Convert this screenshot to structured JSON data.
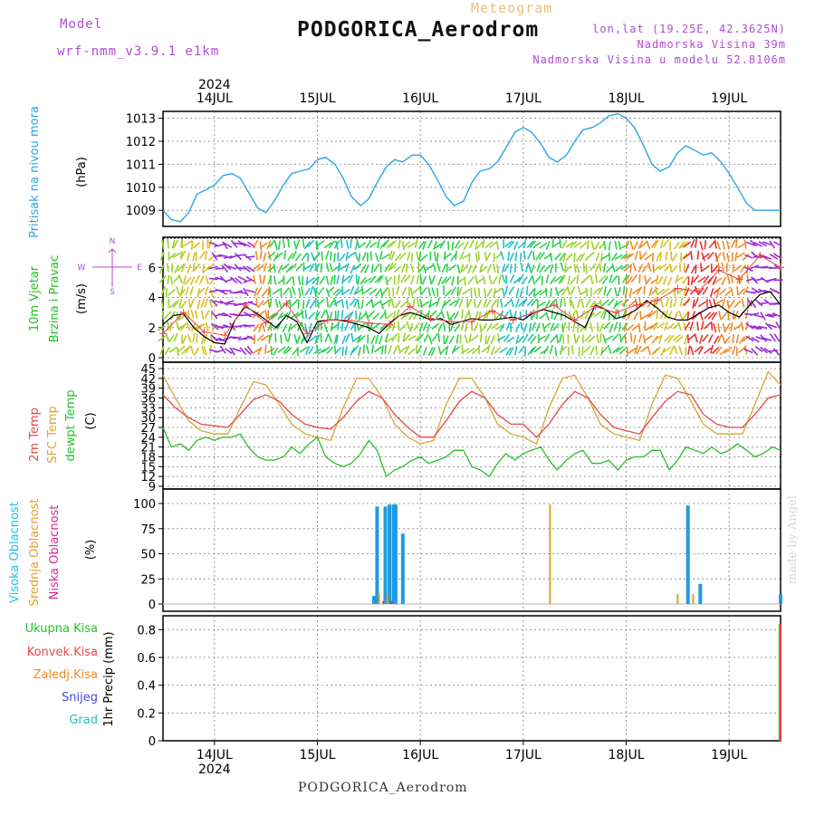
{
  "header": {
    "model_label": "Model",
    "model_name": "wrf-nmm_v3.9.1 e1km",
    "title": "Meteogram",
    "station": "PODGORICA_Aerodrom",
    "lonlat": "lon,lat (19.25E, 42.3625N)",
    "elevation": "Nadmorska Visina 39m",
    "model_elevation": "Nadmorska Visina u modelu 52.8106m",
    "footer_station": "PODGORICA_Aerodrom",
    "watermark": "made by Angel"
  },
  "colors": {
    "pressure": "#2aa6e6",
    "temp2m": "#e84646",
    "sfc_temp": "#d9a635",
    "dewpoint": "#26c026",
    "wind_speed": "#000000",
    "wind_gust": "#e84646",
    "high_cloud": "#1e9be0",
    "mid_cloud": "#e0a030",
    "low_cloud": "#d62a8c",
    "grid": "#888888"
  },
  "chart_data": [
    {
      "type": "line",
      "name": "pressure",
      "x_days": [
        "14JUL",
        "15JUL",
        "16JUL",
        "17JUL",
        "18JUL",
        "19JUL"
      ],
      "year": "2024",
      "ylabel": [
        "Pritisak na nivou mora",
        "(hPa)"
      ],
      "ylim": [
        1008.3,
        1013.3
      ],
      "yticks": [
        1009,
        1010,
        1011,
        1012,
        1013
      ],
      "grid": true,
      "x": [
        -0.5,
        -0.42,
        -0.33,
        -0.25,
        -0.17,
        -0.08,
        0,
        0.08,
        0.17,
        0.25,
        0.33,
        0.42,
        0.5,
        0.58,
        0.67,
        0.75,
        0.83,
        0.92,
        1,
        1.08,
        1.17,
        1.25,
        1.33,
        1.42,
        1.5,
        1.58,
        1.67,
        1.75,
        1.83,
        1.92,
        2,
        2.08,
        2.17,
        2.25,
        2.33,
        2.42,
        2.5,
        2.58,
        2.67,
        2.75,
        2.83,
        2.92,
        3,
        3.08,
        3.17,
        3.25,
        3.33,
        3.42,
        3.5,
        3.58,
        3.67,
        3.75,
        3.83,
        3.92,
        4,
        4.08,
        4.17,
        4.25,
        4.33,
        4.42,
        4.5,
        4.58,
        4.67,
        4.75,
        4.83,
        4.92,
        5,
        5.08,
        5.17,
        5.25,
        5.33,
        5.42,
        5.5
      ],
      "values": [
        1009.0,
        1008.6,
        1008.5,
        1008.9,
        1009.7,
        1009.9,
        1010.1,
        1010.5,
        1010.6,
        1010.4,
        1009.8,
        1009.1,
        1008.9,
        1009.4,
        1010.1,
        1010.6,
        1010.7,
        1010.8,
        1011.2,
        1011.3,
        1011.0,
        1010.4,
        1009.6,
        1009.2,
        1009.5,
        1010.2,
        1010.9,
        1011.2,
        1011.1,
        1011.4,
        1011.4,
        1011.0,
        1010.3,
        1009.6,
        1009.2,
        1009.4,
        1010.2,
        1010.7,
        1010.8,
        1011.1,
        1011.7,
        1012.4,
        1012.6,
        1012.4,
        1011.9,
        1011.3,
        1011.1,
        1011.4,
        1012.0,
        1012.5,
        1012.6,
        1012.8,
        1013.1,
        1013.2,
        1013.0,
        1012.6,
        1011.8,
        1011.0,
        1010.7,
        1010.9,
        1011.5,
        1011.8,
        1011.6,
        1011.4,
        1011.5,
        1011.1,
        1010.6,
        1010.0,
        1009.3,
        1009.0,
        1009.0,
        1009.0,
        1009.0
      ]
    },
    {
      "type": "line",
      "name": "wind",
      "ylabel": [
        "10m Vjetar",
        "Brzina i Pravac",
        "(m/s)"
      ],
      "legend_compass": [
        "N",
        "W",
        "E",
        "S"
      ],
      "ylim": [
        0,
        8
      ],
      "yticks": [
        0,
        2,
        4,
        6
      ],
      "grid": true,
      "series": [
        {
          "name": "speed",
          "x": [
            -0.5,
            -0.4,
            -0.3,
            -0.2,
            -0.1,
            0,
            0.1,
            0.2,
            0.3,
            0.4,
            0.5,
            0.6,
            0.7,
            0.8,
            0.9,
            1,
            1.1,
            1.2,
            1.3,
            1.4,
            1.5,
            1.6,
            1.7,
            1.8,
            1.9,
            2,
            2.1,
            2.2,
            2.3,
            2.4,
            2.5,
            2.6,
            2.7,
            2.8,
            2.9,
            3,
            3.1,
            3.2,
            3.3,
            3.4,
            3.5,
            3.6,
            3.7,
            3.8,
            3.9,
            4,
            4.1,
            4.2,
            4.3,
            4.4,
            4.5,
            4.6,
            4.7,
            4.8,
            4.9,
            5,
            5.1,
            5.2,
            5.3,
            5.4,
            5.5
          ],
          "values": [
            2.2,
            2.8,
            2.9,
            2.0,
            1.4,
            1.0,
            0.9,
            2.5,
            3.4,
            3.0,
            2.5,
            2.0,
            2.8,
            2.4,
            1.0,
            2.4,
            2.5,
            2.5,
            2.4,
            2.2,
            2.0,
            1.6,
            2.3,
            2.8,
            3.0,
            2.8,
            2.5,
            2.6,
            2.2,
            2.4,
            2.6,
            2.5,
            2.5,
            2.6,
            2.7,
            2.5,
            3.0,
            3.2,
            3.0,
            2.8,
            2.4,
            2.0,
            3.5,
            3.2,
            2.6,
            2.8,
            3.2,
            3.8,
            3.3,
            2.7,
            2.5,
            2.5,
            2.9,
            3.3,
            3.5,
            3.0,
            2.7,
            3.5,
            4.2,
            4.4,
            3.5
          ]
        },
        {
          "name": "gust",
          "x": [
            -0.5,
            -0.3,
            -0.1,
            0.1,
            0.3,
            0.5,
            0.7,
            0.9,
            1.1,
            1.3,
            1.5,
            1.7,
            1.9,
            2.1,
            2.3,
            2.5,
            2.7,
            2.9,
            3.1,
            3.3,
            3.5,
            3.7,
            3.9,
            4.1,
            4.3,
            4.5,
            4.7,
            4.9,
            5.1,
            5.3,
            5.5
          ],
          "values": [
            1.6,
            3.0,
            1.7,
            1.5,
            3.5,
            2.3,
            3.6,
            1.6,
            2.5,
            2.5,
            2.3,
            2.2,
            3.4,
            2.6,
            2.4,
            2.4,
            3.1,
            2.5,
            3.0,
            3.5,
            2.5,
            3.4,
            3.0,
            3.5,
            3.8,
            4.6,
            4.4,
            5.8,
            5.2,
            6.8,
            6.0
          ]
        }
      ]
    },
    {
      "type": "line",
      "name": "temperature",
      "ylabel": [
        "2m Temp",
        "SFC Temp",
        "dewpt Temp",
        "(C)"
      ],
      "ylim": [
        9,
        45
      ],
      "yticks": [
        9,
        12,
        15,
        18,
        21,
        24,
        27,
        30,
        33,
        36,
        39,
        42,
        45
      ],
      "grid": true,
      "series": [
        {
          "name": "2m Temp",
          "x": [
            -0.5,
            -0.38,
            -0.25,
            -0.13,
            0,
            0.13,
            0.25,
            0.38,
            0.5,
            0.63,
            0.75,
            0.88,
            1,
            1.13,
            1.25,
            1.38,
            1.5,
            1.63,
            1.75,
            1.88,
            2,
            2.13,
            2.25,
            2.38,
            2.5,
            2.63,
            2.75,
            2.88,
            3,
            3.13,
            3.25,
            3.38,
            3.5,
            3.63,
            3.75,
            3.88,
            4,
            4.13,
            4.25,
            4.38,
            4.5,
            4.63,
            4.75,
            4.88,
            5,
            5.13,
            5.25,
            5.38,
            5.5
          ],
          "values": [
            37,
            33,
            30,
            28,
            27.5,
            27,
            31,
            35.5,
            37,
            35,
            31,
            28,
            27,
            26.5,
            30,
            35,
            38,
            36,
            31,
            27,
            24,
            24,
            29,
            35,
            38,
            36,
            31,
            28,
            28,
            24,
            28,
            34,
            38,
            36,
            31,
            27,
            26,
            25,
            30,
            35,
            38,
            37,
            31,
            28,
            27,
            27,
            31,
            36,
            37
          ]
        },
        {
          "name": "SFC Temp",
          "x": [
            -0.5,
            -0.38,
            -0.25,
            -0.13,
            0,
            0.13,
            0.25,
            0.38,
            0.5,
            0.63,
            0.75,
            0.88,
            1,
            1.13,
            1.25,
            1.38,
            1.5,
            1.63,
            1.75,
            1.88,
            2,
            2.13,
            2.25,
            2.38,
            2.5,
            2.63,
            2.75,
            2.88,
            3,
            3.13,
            3.25,
            3.38,
            3.5,
            3.63,
            3.75,
            3.88,
            4,
            4.13,
            4.25,
            4.38,
            4.5,
            4.63,
            4.75,
            4.88,
            5,
            5.13,
            5.25,
            5.38,
            5.5
          ],
          "values": [
            43,
            36,
            29,
            26,
            25,
            25,
            33,
            41,
            40,
            34,
            28,
            25,
            24,
            23,
            33,
            42,
            42,
            36,
            28,
            24,
            22,
            23,
            34,
            42,
            42,
            36,
            28,
            25,
            24,
            22,
            33,
            42,
            43,
            36,
            28,
            25,
            24,
            23,
            34,
            43,
            42,
            35,
            28,
            25,
            25,
            25,
            34,
            44,
            40
          ]
        },
        {
          "name": "dewpt Temp",
          "x": [
            -0.5,
            -0.42,
            -0.33,
            -0.25,
            -0.17,
            -0.08,
            0,
            0.08,
            0.17,
            0.25,
            0.33,
            0.42,
            0.5,
            0.58,
            0.67,
            0.75,
            0.83,
            0.92,
            1,
            1.08,
            1.17,
            1.25,
            1.33,
            1.42,
            1.5,
            1.58,
            1.67,
            1.75,
            1.83,
            1.92,
            2,
            2.08,
            2.17,
            2.25,
            2.33,
            2.42,
            2.5,
            2.58,
            2.67,
            2.75,
            2.83,
            2.92,
            3,
            3.08,
            3.17,
            3.25,
            3.33,
            3.42,
            3.5,
            3.58,
            3.67,
            3.75,
            3.83,
            3.92,
            4,
            4.08,
            4.17,
            4.25,
            4.33,
            4.42,
            4.5,
            4.58,
            4.67,
            4.75,
            4.83,
            4.92,
            5,
            5.08,
            5.17,
            5.25,
            5.33,
            5.42,
            5.5
          ],
          "values": [
            27,
            21,
            22,
            20,
            23,
            24,
            23,
            24,
            24,
            25,
            21,
            18,
            17,
            17,
            18,
            21,
            19,
            22,
            24,
            18,
            16,
            15,
            16,
            19,
            23,
            20,
            12,
            14,
            15,
            17,
            18,
            16,
            17,
            18,
            20,
            20,
            15,
            14,
            12,
            16,
            19,
            17,
            19,
            20,
            21,
            17,
            14,
            17,
            19,
            20,
            16,
            16,
            17,
            14,
            17,
            18,
            18,
            20,
            20,
            14,
            17,
            21,
            20,
            19,
            21,
            19,
            20,
            22,
            20,
            18,
            19,
            21,
            20
          ]
        }
      ]
    },
    {
      "type": "bar",
      "name": "cloud_cover",
      "ylabel": [
        "Visoka Oblacnost",
        "Srednja Oblacnost",
        "Niska Oblacnost",
        "(%)"
      ],
      "ylim": [
        0,
        100
      ],
      "yticks": [
        0,
        25,
        50,
        75,
        100
      ],
      "grid": true,
      "series": [
        {
          "name": "Visoka Oblacnost",
          "x": [
            1.55,
            1.58,
            1.66,
            1.7,
            1.74,
            1.76,
            1.83,
            4.6,
            4.72,
            5.5
          ],
          "values": [
            8,
            97,
            97,
            99,
            99,
            99,
            70,
            98,
            20,
            10
          ]
        },
        {
          "name": "Srednja Oblacnost",
          "x": [
            1.6,
            1.68,
            3.26,
            4.5,
            4.65
          ],
          "values": [
            10,
            10,
            99,
            10,
            10
          ]
        },
        {
          "name": "Niska Oblacnost",
          "x": [
            1.64,
            1.72
          ],
          "values": [
            3,
            3
          ]
        }
      ]
    },
    {
      "type": "bar",
      "name": "precipitation",
      "ylabel": [
        "Ukupna Kisa",
        "Konvek.Kisa",
        "Zaledj.Kisa",
        "Snijeg",
        "Grad",
        "1hr Precip (mm)"
      ],
      "ylim": [
        0,
        0.9
      ],
      "yticks": [
        0,
        0.2,
        0.4,
        0.6,
        0.8
      ],
      "grid": true,
      "series": [
        {
          "name": "Ukupna Kisa",
          "x": [
            5.49
          ],
          "values": [
            0.84
          ]
        },
        {
          "name": "Konvek.Kisa",
          "x": [
            5.5
          ],
          "values": [
            0.84
          ]
        }
      ]
    }
  ],
  "panel_labels": {
    "pressure": {
      "main": "Pritisak na nivou mora",
      "unit": "(hPa)"
    },
    "wind": {
      "l1": "10m Vjetar",
      "l2": "Brzina i Pravac",
      "unit": "(m/s)"
    },
    "temp": {
      "l1": "2m Temp",
      "l2": "SFC Temp",
      "l3": "dewpt Temp",
      "unit": "(C)"
    },
    "cloud": {
      "l1": "Visoka Oblacnost",
      "l2": "Srednja Oblacnost",
      "l3": "Niska Oblacnost",
      "unit": "(%)"
    },
    "precip": {
      "l1": "Ukupna Kisa",
      "l2": "Konvek.Kisa",
      "l3": "Zaledj.Kisa",
      "l4": "Snijeg",
      "l5": "Grad",
      "unit": "1hr Precip (mm)"
    }
  }
}
